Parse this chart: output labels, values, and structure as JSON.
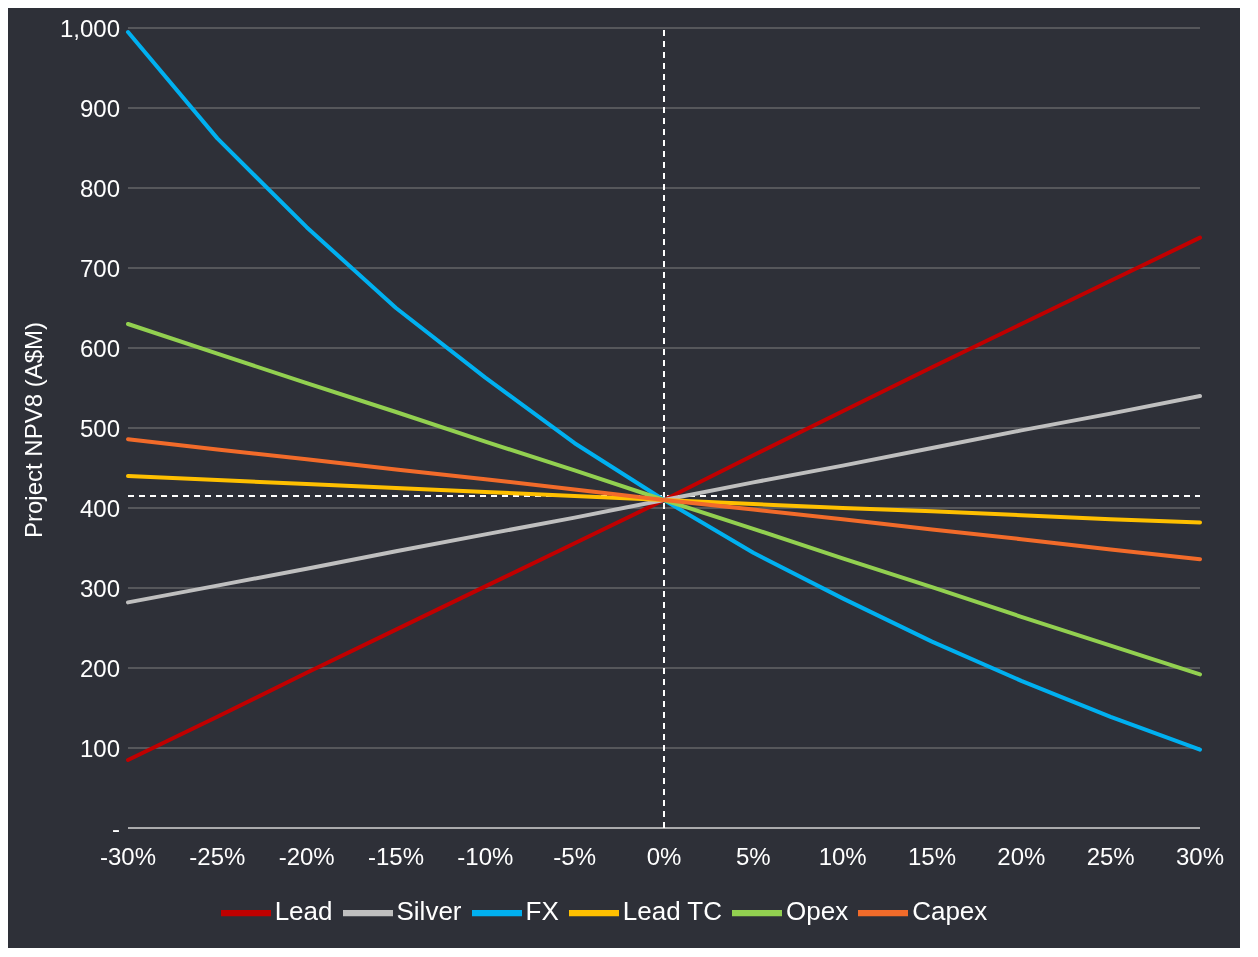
{
  "chart_data": {
    "type": "line",
    "ylabel": "Project NPV8 (A$M)",
    "categories": [
      "-30%",
      "-25%",
      "-20%",
      "-15%",
      "-10%",
      "-5%",
      "0%",
      "5%",
      "10%",
      "15%",
      "20%",
      "25%",
      "30%"
    ],
    "series": [
      {
        "name": "Lead",
        "color": "#c00000",
        "values": [
          85,
          139,
          194,
          248,
          302,
          356,
          410,
          466,
          521,
          576,
          630,
          684,
          738
        ]
      },
      {
        "name": "Silver",
        "color": "#bfbfbf",
        "values": [
          282,
          303,
          324,
          346,
          367,
          388,
          410,
          432,
          453,
          475,
          497,
          518,
          540
        ]
      },
      {
        "name": "FX",
        "color": "#00b0f0",
        "values": [
          995,
          862,
          751,
          650,
          563,
          481,
          410,
          344,
          287,
          233,
          184,
          139,
          98
        ]
      },
      {
        "name": "Lead TC",
        "color": "#ffc000",
        "values": [
          440,
          435,
          430,
          425,
          420,
          415,
          410,
          405,
          400,
          396,
          391,
          386,
          382
        ]
      },
      {
        "name": "Opex",
        "color": "#92d050",
        "values": [
          630,
          593,
          556,
          520,
          483,
          447,
          410,
          374,
          337,
          301,
          264,
          228,
          192
        ]
      },
      {
        "name": "Capex",
        "color": "#f26b2a",
        "values": [
          486,
          473,
          461,
          448,
          436,
          423,
          410,
          398,
          386,
          373,
          361,
          348,
          336
        ]
      }
    ],
    "ylim": [
      0,
      1000
    ],
    "yticks": [
      {
        "value": 0,
        "label": "-"
      },
      100,
      200,
      300,
      400,
      500,
      600,
      700,
      800,
      900,
      {
        "value": 1000,
        "label": "1,000"
      }
    ],
    "ref_lines": [
      {
        "axis": "x",
        "value": "0%",
        "color": "#ffffff",
        "line_style": "dashed"
      },
      {
        "axis": "y",
        "value": 415,
        "color": "#ffffff",
        "line_style": "dashed"
      }
    ],
    "grid": "y",
    "legend": "bottom",
    "marker": "none",
    "line_style": "solid"
  }
}
